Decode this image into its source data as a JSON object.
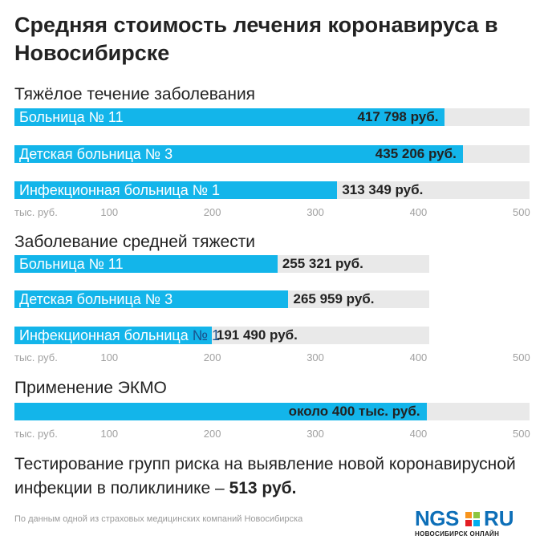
{
  "title": "Средняя стоимость лечения коронавируса в Новосибирске",
  "sections": [
    {
      "heading": "Тяжёлое течение заболевания",
      "bars": [
        {
          "name": "Больница № 11",
          "value_label": "417 798 руб.",
          "value": 417.798
        },
        {
          "name": "Детская больница № 3",
          "value_label": "435 206 руб.",
          "value": 435.206
        },
        {
          "name": "Инфекционная больница № 1",
          "value_label": "313 349 руб.",
          "value": 313.349
        }
      ],
      "axis": {
        "unit": "тыс. руб.",
        "ticks": [
          "100",
          "200",
          "300",
          "400",
          "500"
        ]
      }
    },
    {
      "heading": "Заболевание средней тяжести",
      "bars": [
        {
          "name": "Больница № 11",
          "value_label": "255 321 руб.",
          "value": 255.321
        },
        {
          "name": "Детская больница № 3",
          "value_label": "265 959 руб.",
          "value": 265.959
        },
        {
          "name": "Инфекционная больница",
          "name_overflow": "№ 1",
          "value_label": "191 490 руб.",
          "value": 191.49
        }
      ],
      "axis": {
        "unit": "тыс. руб.",
        "ticks": [
          "100",
          "200",
          "300",
          "400",
          "500"
        ]
      }
    },
    {
      "heading": "Применение ЭКМО",
      "bars": [
        {
          "name": "",
          "value_label": "около 400 тыс. руб.",
          "value": 400
        }
      ],
      "axis": {
        "unit": "тыс. руб.",
        "ticks": [
          "100",
          "200",
          "300",
          "400",
          "500"
        ]
      }
    }
  ],
  "footer": {
    "text": "Тестирование групп риска на выявление новой коронавирусной инфекции в поликлинике –",
    "value": "513 руб."
  },
  "source": "По данным одной из страховых медицинских компаний Новосибирска",
  "logo": {
    "word": "NGS",
    "suffix": "RU",
    "sub": "НОВОСИБИРСК ОНЛАЙН"
  },
  "colors": {
    "bar": "#13b5ea",
    "track": "#e9e9e9",
    "text": "#222222",
    "axis": "#a0a0a0",
    "logo_blue": "#0d6fb8",
    "logo_orange": "#f7941d",
    "logo_green": "#8dc63f",
    "logo_red": "#e31e24",
    "logo_lightblue": "#00aeef"
  },
  "chart_data": [
    {
      "type": "bar",
      "title": "Тяжёлое течение заболевания",
      "categories": [
        "Больница № 11",
        "Детская больница № 3",
        "Инфекционная больница № 1"
      ],
      "values": [
        417.798,
        435.206,
        313.349
      ],
      "xlabel": "тыс. руб.",
      "xlim": [
        0,
        500
      ],
      "orientation": "horizontal"
    },
    {
      "type": "bar",
      "title": "Заболевание средней тяжести",
      "categories": [
        "Больница № 11",
        "Детская больница № 3",
        "Инфекционная больница № 1"
      ],
      "values": [
        255.321,
        265.959,
        191.49
      ],
      "xlabel": "тыс. руб.",
      "xlim": [
        0,
        500
      ],
      "orientation": "horizontal"
    },
    {
      "type": "bar",
      "title": "Применение ЭКМО",
      "categories": [
        ""
      ],
      "values": [
        400
      ],
      "xlabel": "тыс. руб.",
      "xlim": [
        0,
        500
      ],
      "orientation": "horizontal"
    }
  ]
}
